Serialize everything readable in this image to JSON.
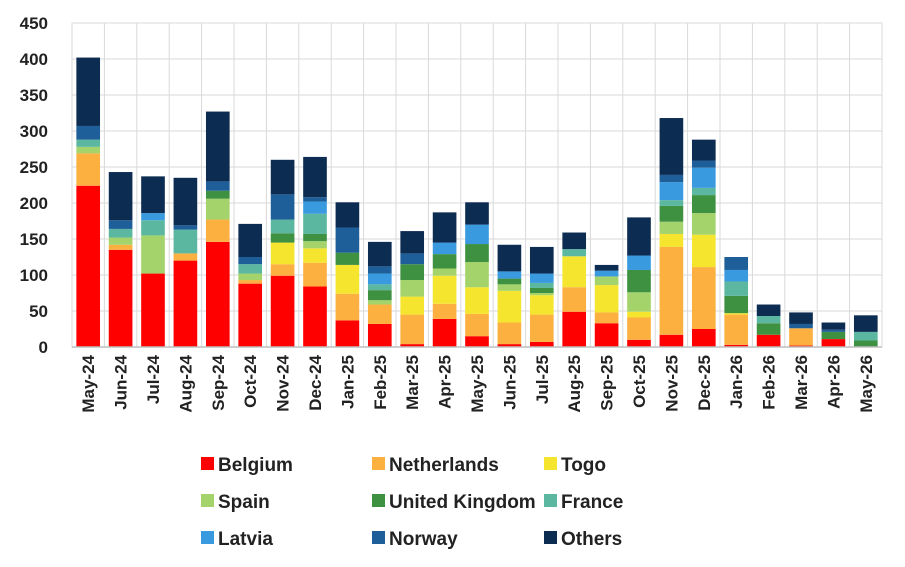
{
  "chart_data": {
    "type": "bar",
    "stacked": true,
    "title": "",
    "xlabel": "",
    "ylabel": "",
    "ylim": [
      0,
      450
    ],
    "yticks": [
      0,
      50,
      100,
      150,
      200,
      250,
      300,
      350,
      400,
      450
    ],
    "grid": true,
    "legend_position": "bottom",
    "categories": [
      "May-24",
      "Jun-24",
      "Jul-24",
      "Aug-24",
      "Sep-24",
      "Oct-24",
      "Nov-24",
      "Dec-24",
      "Jan-25",
      "Feb-25",
      "Mar-25",
      "Apr-25",
      "May-25",
      "Jun-25",
      "Jul-25",
      "Aug-25",
      "Sep-25",
      "Oct-25",
      "Nov-25",
      "Dec-25",
      "Jan-26",
      "Feb-26",
      "Mar-26",
      "Apr-26",
      "May-26"
    ],
    "series": [
      {
        "name": "Belgium",
        "color": "#ff0000",
        "values": [
          224,
          135,
          102,
          120,
          146,
          88,
          99,
          84,
          37,
          32,
          4,
          39,
          15,
          4,
          7,
          49,
          33,
          10,
          17,
          25,
          3,
          17,
          2,
          11,
          0
        ]
      },
      {
        "name": "Netherlands",
        "color": "#fbb040",
        "values": [
          45,
          7,
          0,
          10,
          31,
          5,
          16,
          33,
          37,
          27,
          41,
          21,
          31,
          30,
          38,
          34,
          15,
          31,
          122,
          86,
          42,
          0,
          24,
          0,
          0
        ]
      },
      {
        "name": "Togo",
        "color": "#f5e52f",
        "values": [
          0,
          0,
          0,
          0,
          0,
          0,
          30,
          20,
          40,
          0,
          25,
          39,
          37,
          44,
          27,
          43,
          38,
          8,
          18,
          45,
          2,
          0,
          0,
          0,
          0
        ]
      },
      {
        "name": "Spain",
        "color": "#a4d36c",
        "values": [
          9,
          10,
          53,
          0,
          29,
          9,
          0,
          10,
          0,
          6,
          23,
          10,
          35,
          9,
          3,
          0,
          12,
          27,
          17,
          30,
          0,
          0,
          0,
          0,
          0
        ]
      },
      {
        "name": "United Kingdom",
        "color": "#3f9142",
        "values": [
          0,
          0,
          0,
          0,
          11,
          0,
          13,
          10,
          17,
          14,
          22,
          20,
          25,
          8,
          7,
          0,
          0,
          31,
          22,
          25,
          24,
          16,
          0,
          10,
          9
        ]
      },
      {
        "name": "France",
        "color": "#5bb79f",
        "values": [
          10,
          12,
          21,
          33,
          0,
          13,
          19,
          28,
          0,
          8,
          0,
          0,
          0,
          0,
          7,
          10,
          0,
          0,
          8,
          10,
          20,
          10,
          0,
          0,
          12
        ]
      },
      {
        "name": "Latvia",
        "color": "#3a9ae0",
        "values": [
          0,
          0,
          10,
          0,
          0,
          0,
          0,
          17,
          0,
          15,
          0,
          16,
          27,
          10,
          13,
          0,
          8,
          20,
          25,
          28,
          16,
          0,
          0,
          0,
          0
        ]
      },
      {
        "name": "Norway",
        "color": "#1f5f99",
        "values": [
          19,
          12,
          0,
          6,
          13,
          10,
          35,
          6,
          35,
          10,
          15,
          0,
          0,
          0,
          0,
          0,
          0,
          0,
          10,
          10,
          18,
          0,
          6,
          3,
          0
        ]
      },
      {
        "name": "Others",
        "color": "#0d2c52",
        "values": [
          95,
          67,
          51,
          66,
          97,
          46,
          48,
          56,
          35,
          34,
          31,
          42,
          31,
          37,
          37,
          23,
          8,
          53,
          79,
          29,
          0,
          16,
          16,
          10,
          23
        ]
      }
    ]
  }
}
